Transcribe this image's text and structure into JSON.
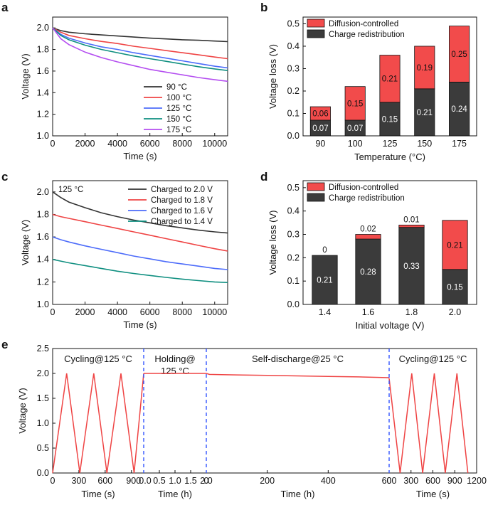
{
  "panels": {
    "a": {
      "label": "a"
    },
    "b": {
      "label": "b"
    },
    "c": {
      "label": "c"
    },
    "d": {
      "label": "d"
    },
    "e": {
      "label": "e"
    }
  },
  "colors": {
    "dark": "#3b3b3b",
    "red": "#f24b4b",
    "s90": "#333333",
    "s100": "#ef4444",
    "s125": "#4d6cfa",
    "s150": "#0f8f80",
    "s175": "#b44ef0",
    "vline": "#3355ff"
  },
  "chart_data": [
    {
      "id": "a",
      "type": "line",
      "xlabel": "Time (s)",
      "ylabel": "Voltage (V)",
      "xlim": [
        0,
        10800
      ],
      "ylim": [
        1.0,
        2.1
      ],
      "xticks": [
        0,
        2000,
        4000,
        6000,
        8000,
        10000
      ],
      "yticks": [
        1.0,
        1.2,
        1.4,
        1.6,
        1.8,
        2.0
      ],
      "legend_position": "bottom-right",
      "series": [
        {
          "name": "90 °C",
          "color_key": "s90",
          "x": [
            0,
            500,
            1000,
            2000,
            3000,
            4000,
            5000,
            6000,
            7000,
            8000,
            9000,
            10000,
            10800
          ],
          "y": [
            2.0,
            1.975,
            1.96,
            1.945,
            1.935,
            1.925,
            1.915,
            1.905,
            1.898,
            1.89,
            1.885,
            1.878,
            1.873
          ]
        },
        {
          "name": "100 °C",
          "color_key": "s100",
          "x": [
            0,
            500,
            1000,
            2000,
            3000,
            4000,
            5000,
            6000,
            7000,
            8000,
            9000,
            10000,
            10800
          ],
          "y": [
            2.0,
            1.96,
            1.93,
            1.9,
            1.875,
            1.855,
            1.83,
            1.81,
            1.79,
            1.77,
            1.75,
            1.73,
            1.715
          ]
        },
        {
          "name": "125 °C",
          "color_key": "s125",
          "x": [
            0,
            500,
            1000,
            2000,
            3000,
            4000,
            5000,
            6000,
            7000,
            8000,
            9000,
            10000,
            10800
          ],
          "y": [
            2.0,
            1.94,
            1.905,
            1.86,
            1.825,
            1.8,
            1.77,
            1.745,
            1.72,
            1.695,
            1.67,
            1.645,
            1.63
          ]
        },
        {
          "name": "150 °C",
          "color_key": "s150",
          "x": [
            0,
            500,
            1000,
            2000,
            3000,
            4000,
            5000,
            6000,
            7000,
            8000,
            9000,
            10000,
            10800
          ],
          "y": [
            2.0,
            1.93,
            1.89,
            1.84,
            1.8,
            1.77,
            1.74,
            1.715,
            1.69,
            1.665,
            1.64,
            1.62,
            1.605
          ]
        },
        {
          "name": "175 °C",
          "color_key": "s175",
          "x": [
            0,
            500,
            1000,
            2000,
            3000,
            4000,
            5000,
            6000,
            7000,
            8000,
            9000,
            10000,
            10800
          ],
          "y": [
            2.0,
            1.9,
            1.845,
            1.775,
            1.725,
            1.685,
            1.65,
            1.615,
            1.59,
            1.565,
            1.54,
            1.52,
            1.505
          ]
        }
      ]
    },
    {
      "id": "b",
      "type": "bar",
      "stacked": true,
      "xlabel": "Temperature (°C)",
      "ylabel": "Voltage loss (V)",
      "ylim": [
        0,
        0.53
      ],
      "yticks": [
        "0.0",
        "0.1",
        "0.2",
        "0.3",
        "0.4",
        "0.5"
      ],
      "categories": [
        "90",
        "100",
        "125",
        "150",
        "175"
      ],
      "legend_position": "top-left",
      "series": [
        {
          "name": "Charge redistribution",
          "color_key": "dark",
          "values": [
            0.07,
            0.07,
            0.15,
            0.21,
            0.24
          ],
          "labels": [
            "0.07",
            "0.07",
            "0.15",
            "0.21",
            "0.24"
          ]
        },
        {
          "name": "Diffusion-controlled",
          "color_key": "red",
          "values": [
            0.06,
            0.15,
            0.21,
            0.19,
            0.25
          ],
          "labels": [
            "0.06",
            "0.15",
            "0.21",
            "0.19",
            "0.25"
          ]
        }
      ]
    },
    {
      "id": "c",
      "type": "line",
      "xlabel": "Time (s)",
      "ylabel": "Voltage (V)",
      "annotation": "125 °C",
      "xlim": [
        0,
        10800
      ],
      "ylim": [
        1.0,
        2.1
      ],
      "xticks": [
        0,
        2000,
        4000,
        6000,
        8000,
        10000
      ],
      "yticks": [
        1.0,
        1.2,
        1.4,
        1.6,
        1.8,
        2.0
      ],
      "legend_position": "top-right",
      "series": [
        {
          "name": "Charged to 2.0 V",
          "color_key": "s90",
          "x": [
            0,
            500,
            1000,
            2000,
            3000,
            4000,
            5000,
            6000,
            7000,
            8000,
            9000,
            10000,
            10800
          ],
          "y": [
            2.0,
            1.95,
            1.91,
            1.86,
            1.815,
            1.78,
            1.75,
            1.725,
            1.7,
            1.68,
            1.66,
            1.645,
            1.635
          ]
        },
        {
          "name": "Charged to 1.8 V",
          "color_key": "s100",
          "x": [
            0,
            500,
            1000,
            2000,
            3000,
            4000,
            5000,
            6000,
            7000,
            8000,
            9000,
            10000,
            10800
          ],
          "y": [
            1.8,
            1.78,
            1.765,
            1.735,
            1.705,
            1.675,
            1.645,
            1.615,
            1.585,
            1.555,
            1.525,
            1.495,
            1.475
          ]
        },
        {
          "name": "Charged to 1.6 V",
          "color_key": "s125",
          "x": [
            0,
            500,
            1000,
            2000,
            3000,
            4000,
            5000,
            6000,
            7000,
            8000,
            9000,
            10000,
            10800
          ],
          "y": [
            1.6,
            1.575,
            1.555,
            1.52,
            1.49,
            1.46,
            1.43,
            1.405,
            1.38,
            1.36,
            1.34,
            1.32,
            1.31
          ]
        },
        {
          "name": "Charged to 1.4 V",
          "color_key": "s150",
          "x": [
            0,
            500,
            1000,
            2000,
            3000,
            4000,
            5000,
            6000,
            7000,
            8000,
            9000,
            10000,
            10800
          ],
          "y": [
            1.4,
            1.385,
            1.37,
            1.345,
            1.32,
            1.295,
            1.275,
            1.257,
            1.24,
            1.225,
            1.212,
            1.2,
            1.195
          ]
        }
      ]
    },
    {
      "id": "d",
      "type": "bar",
      "stacked": true,
      "xlabel": "Initial voltage (V)",
      "ylabel": "Voltage loss (V)",
      "ylim": [
        0,
        0.53
      ],
      "yticks": [
        "0.0",
        "0.1",
        "0.2",
        "0.3",
        "0.4",
        "0.5"
      ],
      "categories": [
        "1.4",
        "1.6",
        "1.8",
        "2.0"
      ],
      "legend_position": "top-left",
      "series": [
        {
          "name": "Charge redistribution",
          "color_key": "dark",
          "values": [
            0.21,
            0.28,
            0.33,
            0.15
          ],
          "labels": [
            "0.21",
            "0.28",
            "0.33",
            "0.15"
          ]
        },
        {
          "name": "Diffusion-controlled",
          "color_key": "red",
          "values": [
            0.0,
            0.02,
            0.01,
            0.21
          ],
          "labels": [
            "0",
            "0.02",
            "0.01",
            "0.21"
          ]
        }
      ]
    },
    {
      "id": "e",
      "type": "line",
      "ylabel": "Voltage (V)",
      "ylim": [
        0,
        2.5
      ],
      "yticks": [
        "0.0",
        "0.5",
        "1.0",
        "1.5",
        "2.0",
        "2.5"
      ],
      "segments": [
        {
          "title": "Cycling@125 °C",
          "xlabel": "Time (s)",
          "xlim": [
            0,
            1040
          ],
          "xticks": [
            "0",
            "300",
            "600",
            "900"
          ],
          "x": [
            0,
            160,
            310,
            470,
            620,
            780,
            930,
            1040
          ],
          "y": [
            0.0,
            2.0,
            0.0,
            2.0,
            0.0,
            2.0,
            0.0,
            2.0
          ]
        },
        {
          "title": "Holding@\n125 °C",
          "xlabel": "Time (h)",
          "xlim": [
            0,
            2.0
          ],
          "xticks": [
            "0.0",
            "0.5",
            "1.0",
            "1.5",
            "2.0"
          ],
          "x": [
            0,
            2.0
          ],
          "y": [
            2.0,
            2.0
          ]
        },
        {
          "title": "Self-discharge@25 °C",
          "xlabel": "Time (h)",
          "xlim": [
            0,
            600
          ],
          "xticks": [
            "0",
            "200",
            "400",
            "600"
          ],
          "x": [
            0,
            10,
            50,
            100,
            200,
            300,
            400,
            500,
            600
          ],
          "y": [
            2.0,
            1.98,
            1.975,
            1.97,
            1.96,
            1.95,
            1.94,
            1.93,
            1.915
          ]
        },
        {
          "title": "Cycling@125 °C",
          "xlabel": "Time (s)",
          "xlim": [
            0,
            1200
          ],
          "xticks": [
            "0",
            "300",
            "600",
            "900",
            "1200"
          ],
          "x": [
            0,
            150,
            310,
            460,
            620,
            770,
            930,
            1080
          ],
          "y": [
            1.9,
            0.0,
            2.0,
            0.0,
            2.0,
            0.0,
            2.0,
            0.0
          ]
        }
      ]
    }
  ]
}
